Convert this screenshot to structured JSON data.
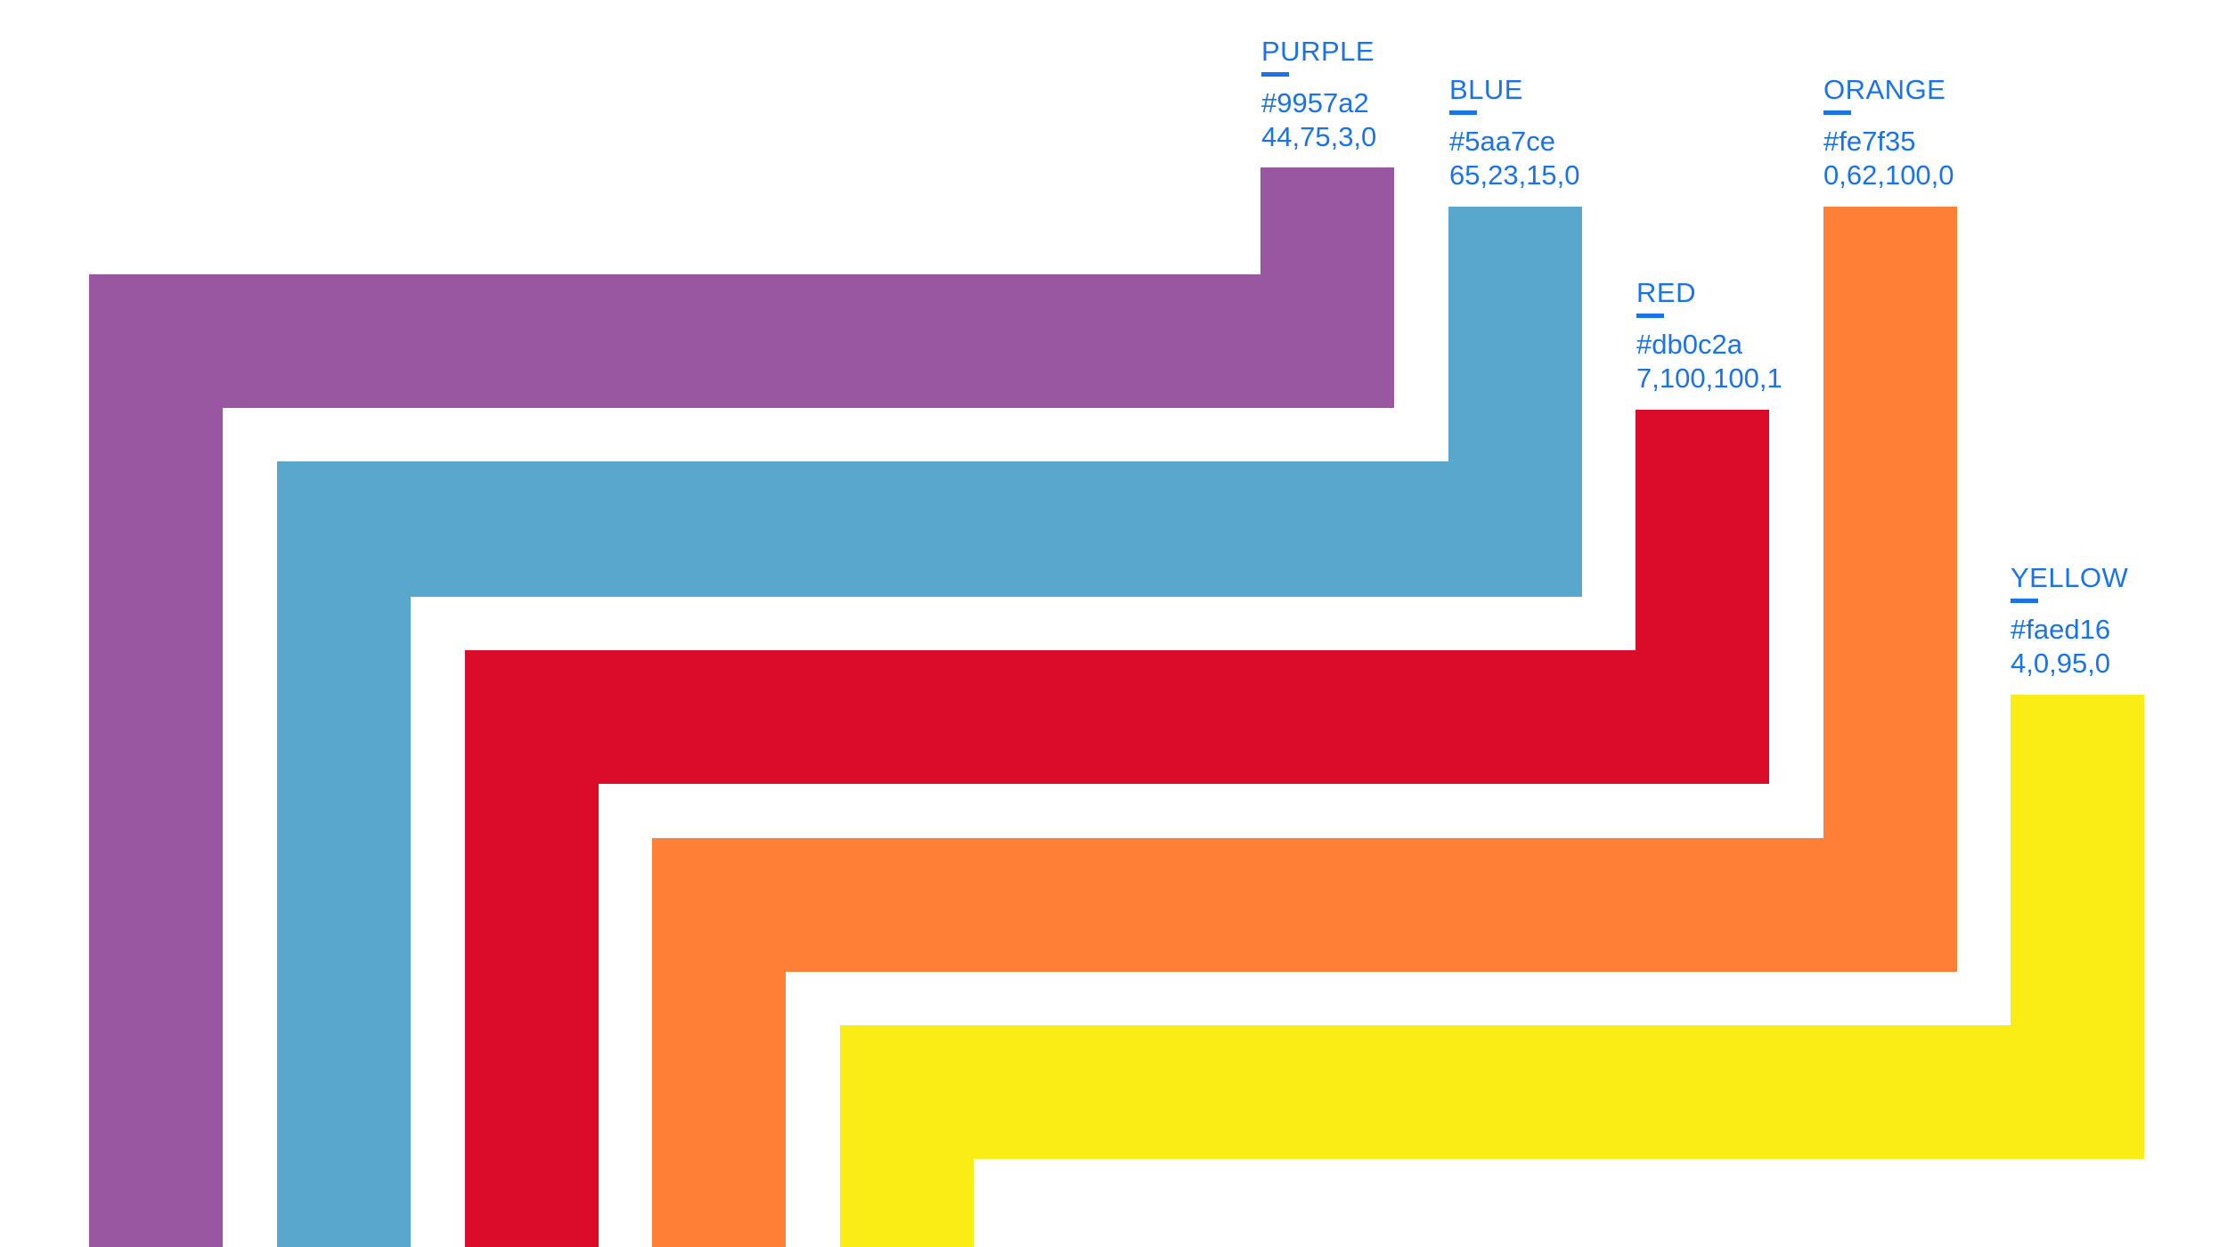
{
  "swatches": [
    {
      "name": "PURPLE",
      "hex": "#9957a2",
      "cmyk": "44,75,3,0",
      "color": "#9957a2"
    },
    {
      "name": "BLUE",
      "hex": "#5aa7ce",
      "cmyk": "65,23,15,0",
      "color": "#5aa7ce"
    },
    {
      "name": "RED",
      "hex": "#db0c2a",
      "cmyk": "7,100,100,1",
      "color": "#db0c2a"
    },
    {
      "name": "ORANGE",
      "hex": "#fe7f35",
      "cmyk": "0,62,100,0",
      "color": "#fe7f35"
    },
    {
      "name": "YELLOW",
      "hex": "#faed16",
      "cmyk": "4,0,95,0",
      "color": "#faed16"
    }
  ],
  "label_color": "#1a73e8"
}
